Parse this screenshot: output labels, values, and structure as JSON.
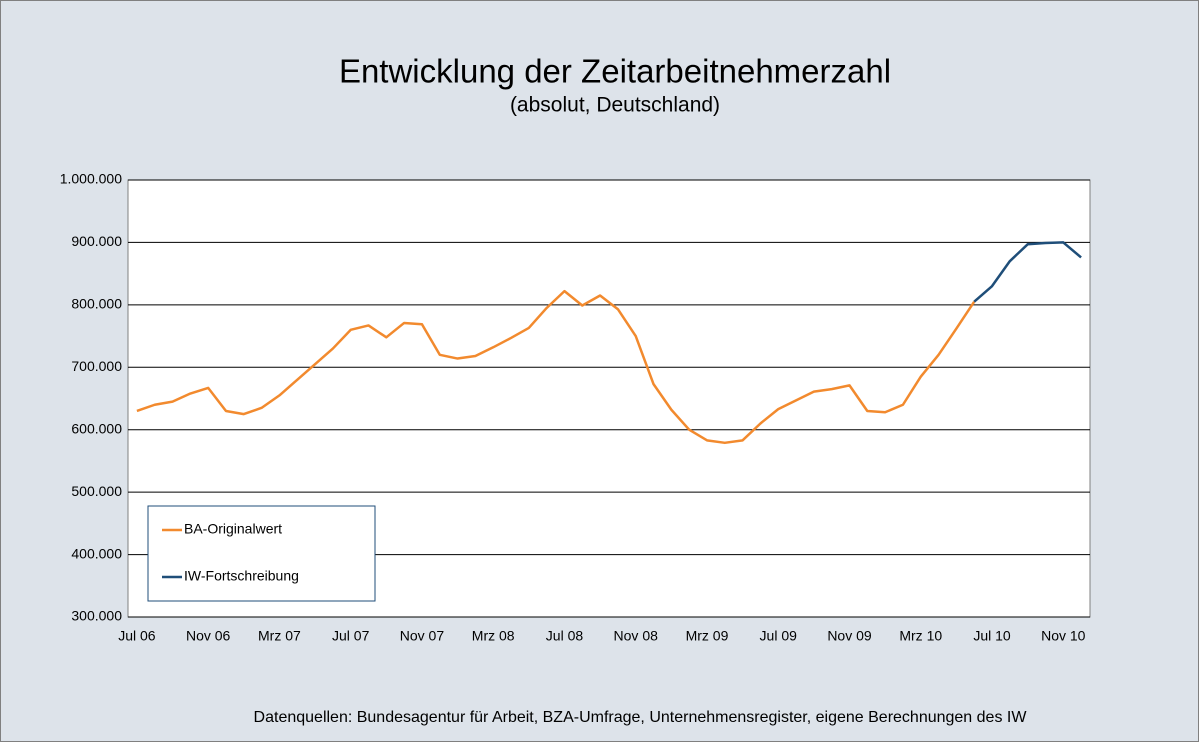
{
  "chart_data": {
    "type": "line",
    "title": "Entwicklung der Zeitarbeitnehmerzahl",
    "subtitle": "(absolut, Deutschland)",
    "source": "Datenquellen:  Bundesagentur  für  Arbeit,  BZA-Umfrage,  Unternehmensregister,   eigene  Berechnungen   des IW",
    "categories": [
      "Jul 06",
      null,
      null,
      null,
      "Nov 06",
      null,
      null,
      null,
      "Mrz 07",
      null,
      null,
      null,
      "Jul 07",
      null,
      null,
      null,
      "Nov 07",
      null,
      null,
      null,
      "Mrz 08",
      null,
      null,
      null,
      "Jul 08",
      null,
      null,
      null,
      "Nov 08",
      null,
      null,
      null,
      "Mrz 09",
      null,
      null,
      null,
      "Jul 09",
      null,
      null,
      null,
      "Nov 09",
      null,
      null,
      null,
      "Mrz 10",
      null,
      null,
      null,
      "Jul 10",
      null,
      null,
      null,
      "Nov 10",
      null
    ],
    "series": [
      {
        "name": "BA-Originalwert",
        "color": "#f28a2e",
        "values": [
          630000,
          640000,
          645000,
          658000,
          667000,
          630000,
          625000,
          635000,
          655000,
          680000,
          705000,
          730000,
          760000,
          767000,
          748000,
          771000,
          769000,
          720000,
          714000,
          718000,
          732000,
          747000,
          763000,
          795000,
          822000,
          799000,
          815000,
          793000,
          750000,
          673000,
          632000,
          600000,
          583000,
          579000,
          583000,
          610000,
          633000,
          647000,
          661000,
          665000,
          671000,
          630000,
          628000,
          640000,
          685000,
          720000,
          762000,
          805000,
          null,
          null,
          null,
          null,
          null,
          null
        ]
      },
      {
        "name": "IW-Fortschreibung",
        "color": "#1f4e79",
        "values": [
          null,
          null,
          null,
          null,
          null,
          null,
          null,
          null,
          null,
          null,
          null,
          null,
          null,
          null,
          null,
          null,
          null,
          null,
          null,
          null,
          null,
          null,
          null,
          null,
          null,
          null,
          null,
          null,
          null,
          null,
          null,
          null,
          null,
          null,
          null,
          null,
          null,
          null,
          null,
          null,
          null,
          null,
          null,
          null,
          null,
          null,
          null,
          805000,
          830000,
          870000,
          897000,
          899000,
          900000,
          876000
        ]
      }
    ],
    "ylim": [
      300000,
      1000000
    ],
    "yticks": [
      {
        "value": 300000,
        "label": "300.000"
      },
      {
        "value": 400000,
        "label": "400.000"
      },
      {
        "value": 500000,
        "label": "500.000"
      },
      {
        "value": 600000,
        "label": "600.000"
      },
      {
        "value": 700000,
        "label": "700.000"
      },
      {
        "value": 800000,
        "label": "800.000"
      },
      {
        "value": 900000,
        "label": "900.000"
      },
      {
        "value": 1000000,
        "label": "1.000.000"
      }
    ],
    "grid": true,
    "legend": "lower left"
  }
}
